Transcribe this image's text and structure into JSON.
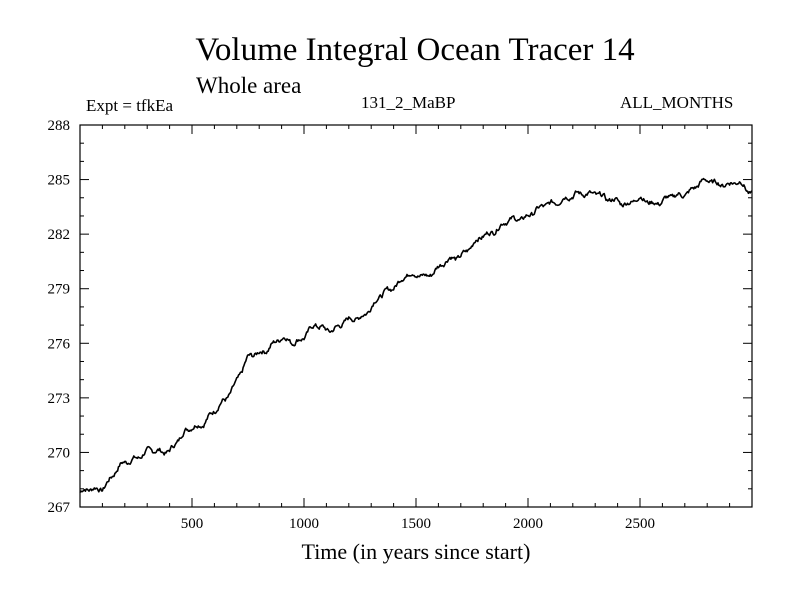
{
  "chart_data": {
    "type": "line",
    "title": "Volume Integral Ocean Tracer 14",
    "subtitle": "Whole area",
    "experiment_label": "Expt = tfkEa",
    "run_label": "131_2_MaBP",
    "months_label": "ALL_MONTHS",
    "xlabel": "Time (in years since start)",
    "ylabel": "",
    "xlim": [
      0,
      3000
    ],
    "ylim": [
      267,
      288
    ],
    "x_ticks": [
      500,
      1000,
      1500,
      2000,
      2500
    ],
    "y_ticks": [
      267,
      270,
      273,
      276,
      279,
      282,
      285,
      288
    ],
    "line_color": "#000000",
    "series": [
      {
        "x": [
          0,
          50,
          100,
          150,
          200,
          250,
          300,
          350,
          400,
          450,
          500,
          550,
          600,
          650,
          700,
          750,
          800,
          850,
          900,
          950,
          1000,
          1050,
          1100,
          1150,
          1200,
          1250,
          1300,
          1350,
          1400,
          1450,
          1500,
          1550,
          1600,
          1650,
          1700,
          1750,
          1800,
          1850,
          1900,
          1950,
          2000,
          2050,
          2100,
          2150,
          2200,
          2250,
          2300,
          2350,
          2400,
          2450,
          2500,
          2550,
          2600,
          2650,
          2700,
          2750,
          2800,
          2850,
          2900,
          2950,
          3000
        ],
        "y": [
          267.8,
          267.9,
          268.1,
          268.8,
          269.4,
          269.8,
          270.0,
          270.0,
          270.2,
          270.8,
          271.4,
          271.7,
          272.2,
          272.9,
          274.0,
          275.1,
          275.5,
          275.9,
          276.2,
          276.1,
          276.4,
          276.9,
          276.8,
          276.9,
          277.2,
          277.5,
          278.0,
          278.6,
          279.2,
          279.7,
          279.7,
          279.8,
          280.1,
          280.6,
          280.9,
          281.3,
          281.9,
          282.3,
          282.6,
          282.8,
          283.1,
          283.3,
          283.7,
          284.0,
          284.0,
          284.3,
          284.3,
          283.8,
          283.9,
          283.7,
          283.9,
          283.8,
          283.8,
          284.0,
          284.3,
          284.6,
          284.9,
          284.9,
          284.7,
          284.8,
          284.3
        ]
      }
    ]
  }
}
